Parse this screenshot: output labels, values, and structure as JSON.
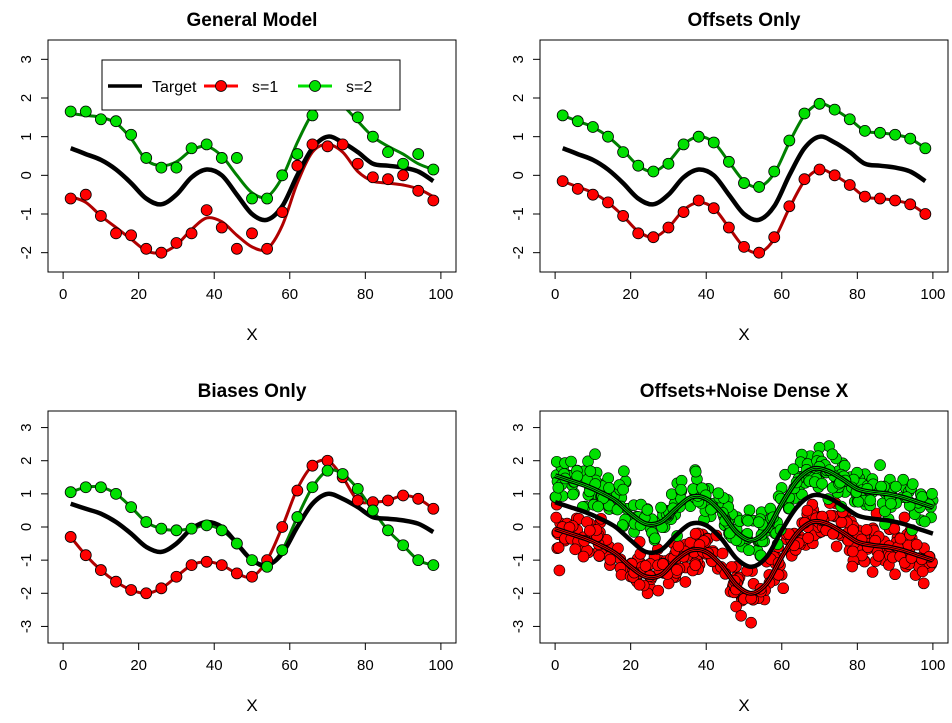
{
  "colors": {
    "target": "#000000",
    "s1": "#ff0000",
    "s2": "#00e000",
    "s1_line": "#b00000",
    "s2_line": "#008000",
    "point_edge": "#000000"
  },
  "legend": [
    {
      "label": "Target",
      "color": "#000000",
      "marker": false
    },
    {
      "label": "s=1",
      "color": "#ff0000",
      "marker": true
    },
    {
      "label": "s=2",
      "color": "#00e000",
      "marker": true
    }
  ],
  "chart_data": [
    {
      "type": "line",
      "title": "General Model",
      "xlabel": "X",
      "ylabel": "",
      "xlim": [
        0,
        100
      ],
      "ylim": [
        -2.5,
        3.5
      ],
      "xticks": [
        0,
        20,
        40,
        60,
        80,
        100
      ],
      "yticks": [
        -2,
        -1,
        0,
        1,
        2,
        3
      ],
      "legend_position": "top-left",
      "series": [
        {
          "name": "Target",
          "x": [
            2,
            6,
            10,
            14,
            18,
            22,
            26,
            30,
            34,
            38,
            42,
            46,
            50,
            54,
            58,
            62,
            66,
            70,
            74,
            78,
            82,
            86,
            90,
            94,
            98
          ],
          "y": [
            0.7,
            0.55,
            0.4,
            0.15,
            -0.2,
            -0.6,
            -0.75,
            -0.5,
            -0.05,
            0.15,
            0.0,
            -0.5,
            -1.0,
            -1.15,
            -0.8,
            0.0,
            0.7,
            1.0,
            0.85,
            0.6,
            0.3,
            0.25,
            0.2,
            0.1,
            -0.15
          ]
        },
        {
          "name": "s=1",
          "x": [
            2,
            6,
            10,
            14,
            18,
            22,
            26,
            30,
            34,
            38,
            42,
            46,
            50,
            54,
            58,
            62,
            66,
            70,
            74,
            78,
            82,
            86,
            90,
            94,
            98
          ],
          "y": [
            -0.55,
            -0.7,
            -1.05,
            -1.35,
            -1.65,
            -1.95,
            -2.0,
            -1.8,
            -1.4,
            -1.1,
            -1.2,
            -1.55,
            -1.85,
            -1.9,
            -1.3,
            -0.2,
            0.6,
            0.8,
            0.6,
            0.1,
            -0.15,
            -0.2,
            -0.25,
            -0.35,
            -0.55
          ],
          "points": [
            -0.6,
            -0.5,
            -1.05,
            -1.5,
            -1.55,
            -1.9,
            -2.0,
            -1.75,
            -1.5,
            -0.9,
            -1.35,
            -1.9,
            -1.5,
            -1.9,
            -0.95,
            0.25,
            0.8,
            0.75,
            0.8,
            0.3,
            -0.05,
            -0.1,
            0.0,
            -0.4,
            -0.65
          ]
        },
        {
          "name": "s=2",
          "x": [
            2,
            6,
            10,
            14,
            18,
            22,
            26,
            30,
            34,
            38,
            42,
            46,
            50,
            54,
            58,
            62,
            66,
            70,
            74,
            78,
            82,
            86,
            90,
            94,
            98
          ],
          "y": [
            1.6,
            1.55,
            1.5,
            1.35,
            0.95,
            0.4,
            0.25,
            0.35,
            0.65,
            0.75,
            0.5,
            0.0,
            -0.45,
            -0.55,
            -0.05,
            0.85,
            1.6,
            1.95,
            1.8,
            1.4,
            1.0,
            0.75,
            0.55,
            0.3,
            0.15
          ],
          "points": [
            1.65,
            1.65,
            1.45,
            1.4,
            1.05,
            0.45,
            0.2,
            0.2,
            0.7,
            0.8,
            0.45,
            0.45,
            -0.6,
            -0.6,
            0.0,
            0.55,
            1.55,
            1.9,
            1.95,
            1.5,
            1.0,
            0.6,
            0.3,
            0.55,
            0.15
          ]
        }
      ]
    },
    {
      "type": "line",
      "title": "Offsets Only",
      "xlabel": "X",
      "ylabel": "",
      "xlim": [
        0,
        100
      ],
      "ylim": [
        -2.5,
        3.5
      ],
      "xticks": [
        0,
        20,
        40,
        60,
        80,
        100
      ],
      "yticks": [
        -2,
        -1,
        0,
        1,
        2,
        3
      ],
      "series": [
        {
          "name": "Target",
          "x": [
            2,
            6,
            10,
            14,
            18,
            22,
            26,
            30,
            34,
            38,
            42,
            46,
            50,
            54,
            58,
            62,
            66,
            70,
            74,
            78,
            82,
            86,
            90,
            94,
            98
          ],
          "y": [
            0.7,
            0.55,
            0.4,
            0.15,
            -0.2,
            -0.6,
            -0.75,
            -0.5,
            -0.05,
            0.15,
            0.0,
            -0.5,
            -1.0,
            -1.15,
            -0.8,
            0.0,
            0.7,
            1.0,
            0.85,
            0.6,
            0.3,
            0.25,
            0.2,
            0.1,
            -0.15
          ]
        },
        {
          "name": "s=1",
          "x": [
            2,
            6,
            10,
            14,
            18,
            22,
            26,
            30,
            34,
            38,
            42,
            46,
            50,
            54,
            58,
            62,
            66,
            70,
            74,
            78,
            82,
            86,
            90,
            94,
            98
          ],
          "y": [
            -0.15,
            -0.3,
            -0.45,
            -0.7,
            -1.05,
            -1.45,
            -1.6,
            -1.35,
            -0.9,
            -0.7,
            -0.85,
            -1.35,
            -1.85,
            -2.0,
            -1.65,
            -0.85,
            -0.15,
            0.15,
            0.0,
            -0.25,
            -0.55,
            -0.6,
            -0.65,
            -0.75,
            -1.0
          ],
          "points": [
            -0.15,
            -0.35,
            -0.5,
            -0.7,
            -1.05,
            -1.5,
            -1.6,
            -1.35,
            -0.95,
            -0.65,
            -0.85,
            -1.35,
            -1.85,
            -2.0,
            -1.6,
            -0.8,
            -0.1,
            0.15,
            0.0,
            -0.25,
            -0.55,
            -0.6,
            -0.65,
            -0.75,
            -1.0
          ]
        },
        {
          "name": "s=2",
          "x": [
            2,
            6,
            10,
            14,
            18,
            22,
            26,
            30,
            34,
            38,
            42,
            46,
            50,
            54,
            58,
            62,
            66,
            70,
            74,
            78,
            82,
            86,
            90,
            94,
            98
          ],
          "y": [
            1.55,
            1.4,
            1.25,
            1.0,
            0.65,
            0.25,
            0.1,
            0.35,
            0.8,
            1.0,
            0.85,
            0.35,
            -0.15,
            -0.3,
            0.05,
            0.85,
            1.55,
            1.85,
            1.7,
            1.45,
            1.15,
            1.1,
            1.05,
            0.95,
            0.7
          ],
          "points": [
            1.55,
            1.4,
            1.25,
            1.0,
            0.6,
            0.25,
            0.1,
            0.3,
            0.8,
            1.0,
            0.85,
            0.35,
            -0.2,
            -0.3,
            0.1,
            0.9,
            1.6,
            1.85,
            1.7,
            1.45,
            1.15,
            1.1,
            1.05,
            0.95,
            0.7
          ]
        }
      ]
    },
    {
      "type": "line",
      "title": "Biases Only",
      "xlabel": "X",
      "ylabel": "",
      "xlim": [
        0,
        100
      ],
      "ylim": [
        -3.5,
        3.5
      ],
      "xticks": [
        0,
        20,
        40,
        60,
        80,
        100
      ],
      "yticks": [
        -3,
        -2,
        -1,
        0,
        1,
        2,
        3
      ],
      "series": [
        {
          "name": "Target",
          "x": [
            2,
            6,
            10,
            14,
            18,
            22,
            26,
            30,
            34,
            38,
            42,
            46,
            50,
            54,
            58,
            62,
            66,
            70,
            74,
            78,
            82,
            86,
            90,
            94,
            98
          ],
          "y": [
            0.7,
            0.55,
            0.4,
            0.15,
            -0.2,
            -0.6,
            -0.75,
            -0.5,
            -0.05,
            0.15,
            0.0,
            -0.5,
            -1.0,
            -1.15,
            -0.8,
            0.0,
            0.7,
            1.0,
            0.85,
            0.6,
            0.3,
            0.25,
            0.2,
            0.1,
            -0.15
          ]
        },
        {
          "name": "s=1",
          "x": [
            2,
            6,
            10,
            14,
            18,
            22,
            26,
            30,
            34,
            38,
            42,
            46,
            50,
            54,
            58,
            62,
            66,
            70,
            74,
            78,
            82,
            86,
            90,
            94,
            98
          ],
          "y": [
            -0.3,
            -0.85,
            -1.3,
            -1.65,
            -1.9,
            -2.0,
            -1.85,
            -1.5,
            -1.15,
            -1.05,
            -1.15,
            -1.4,
            -1.5,
            -1.0,
            0.0,
            1.15,
            1.85,
            2.0,
            1.5,
            0.8,
            0.75,
            0.8,
            0.95,
            0.85,
            0.55
          ],
          "points": [
            -0.3,
            -0.85,
            -1.3,
            -1.65,
            -1.9,
            -2.0,
            -1.85,
            -1.5,
            -1.15,
            -1.05,
            -1.15,
            -1.4,
            -1.5,
            -1.0,
            0.0,
            1.1,
            1.85,
            2.0,
            1.5,
            0.8,
            0.75,
            0.8,
            0.95,
            0.85,
            0.55
          ]
        },
        {
          "name": "s=2",
          "x": [
            2,
            6,
            10,
            14,
            18,
            22,
            26,
            30,
            34,
            38,
            42,
            46,
            50,
            54,
            58,
            62,
            66,
            70,
            74,
            78,
            82,
            86,
            90,
            94,
            98
          ],
          "y": [
            1.05,
            1.2,
            1.2,
            1.0,
            0.6,
            0.15,
            -0.05,
            -0.1,
            -0.05,
            0.05,
            -0.1,
            -0.5,
            -1.0,
            -1.2,
            -0.7,
            0.3,
            1.2,
            1.7,
            1.6,
            1.15,
            0.5,
            -0.1,
            -0.55,
            -1.0,
            -1.15
          ],
          "points": [
            1.05,
            1.2,
            1.2,
            1.0,
            0.6,
            0.15,
            -0.05,
            -0.1,
            -0.05,
            0.05,
            -0.1,
            -0.5,
            -1.0,
            -1.2,
            -0.7,
            0.3,
            1.2,
            1.7,
            1.6,
            1.15,
            0.5,
            -0.1,
            -0.55,
            -1.0,
            -1.15
          ]
        }
      ]
    },
    {
      "type": "line",
      "title": "Offsets+Noise Dense X",
      "xlabel": "X",
      "ylabel": "",
      "xlim": [
        0,
        100
      ],
      "ylim": [
        -3.5,
        3.5
      ],
      "xticks": [
        0,
        20,
        40,
        60,
        80,
        100
      ],
      "yticks": [
        -3,
        -2,
        -1,
        0,
        1,
        2,
        3
      ],
      "series": [
        {
          "name": "Target",
          "x": [
            0,
            4,
            8,
            12,
            16,
            20,
            24,
            28,
            32,
            36,
            40,
            44,
            48,
            52,
            56,
            60,
            64,
            68,
            72,
            76,
            80,
            84,
            88,
            92,
            96,
            100
          ],
          "y": [
            0.75,
            0.6,
            0.45,
            0.25,
            0.0,
            -0.4,
            -0.75,
            -0.7,
            -0.25,
            0.1,
            0.05,
            -0.35,
            -0.95,
            -1.2,
            -0.9,
            -0.1,
            0.6,
            0.95,
            0.9,
            0.65,
            0.35,
            0.25,
            0.2,
            0.1,
            -0.05,
            -0.2
          ]
        },
        {
          "name": "s=1",
          "x": [
            0,
            4,
            8,
            12,
            16,
            20,
            24,
            28,
            32,
            36,
            40,
            44,
            48,
            52,
            56,
            60,
            64,
            68,
            72,
            76,
            80,
            84,
            88,
            92,
            96,
            100
          ],
          "y": [
            -0.05,
            -0.2,
            -0.35,
            -0.55,
            -0.8,
            -1.2,
            -1.5,
            -1.45,
            -1.0,
            -0.7,
            -0.75,
            -1.15,
            -1.75,
            -2.0,
            -1.7,
            -0.9,
            -0.2,
            0.15,
            0.1,
            -0.15,
            -0.45,
            -0.55,
            -0.6,
            -0.7,
            -0.85,
            -1.0
          ],
          "noise": 0.35,
          "density": 120
        },
        {
          "name": "s=2",
          "x": [
            0,
            4,
            8,
            12,
            16,
            20,
            24,
            28,
            32,
            36,
            40,
            44,
            48,
            52,
            56,
            60,
            64,
            68,
            72,
            76,
            80,
            84,
            88,
            92,
            96,
            100
          ],
          "y": [
            1.55,
            1.4,
            1.25,
            1.05,
            0.8,
            0.4,
            0.1,
            0.15,
            0.55,
            0.9,
            0.85,
            0.45,
            -0.15,
            -0.4,
            -0.1,
            0.7,
            1.4,
            1.75,
            1.7,
            1.45,
            1.15,
            1.05,
            1.0,
            0.9,
            0.75,
            0.6
          ],
          "noise": 0.35,
          "density": 120
        }
      ]
    }
  ]
}
